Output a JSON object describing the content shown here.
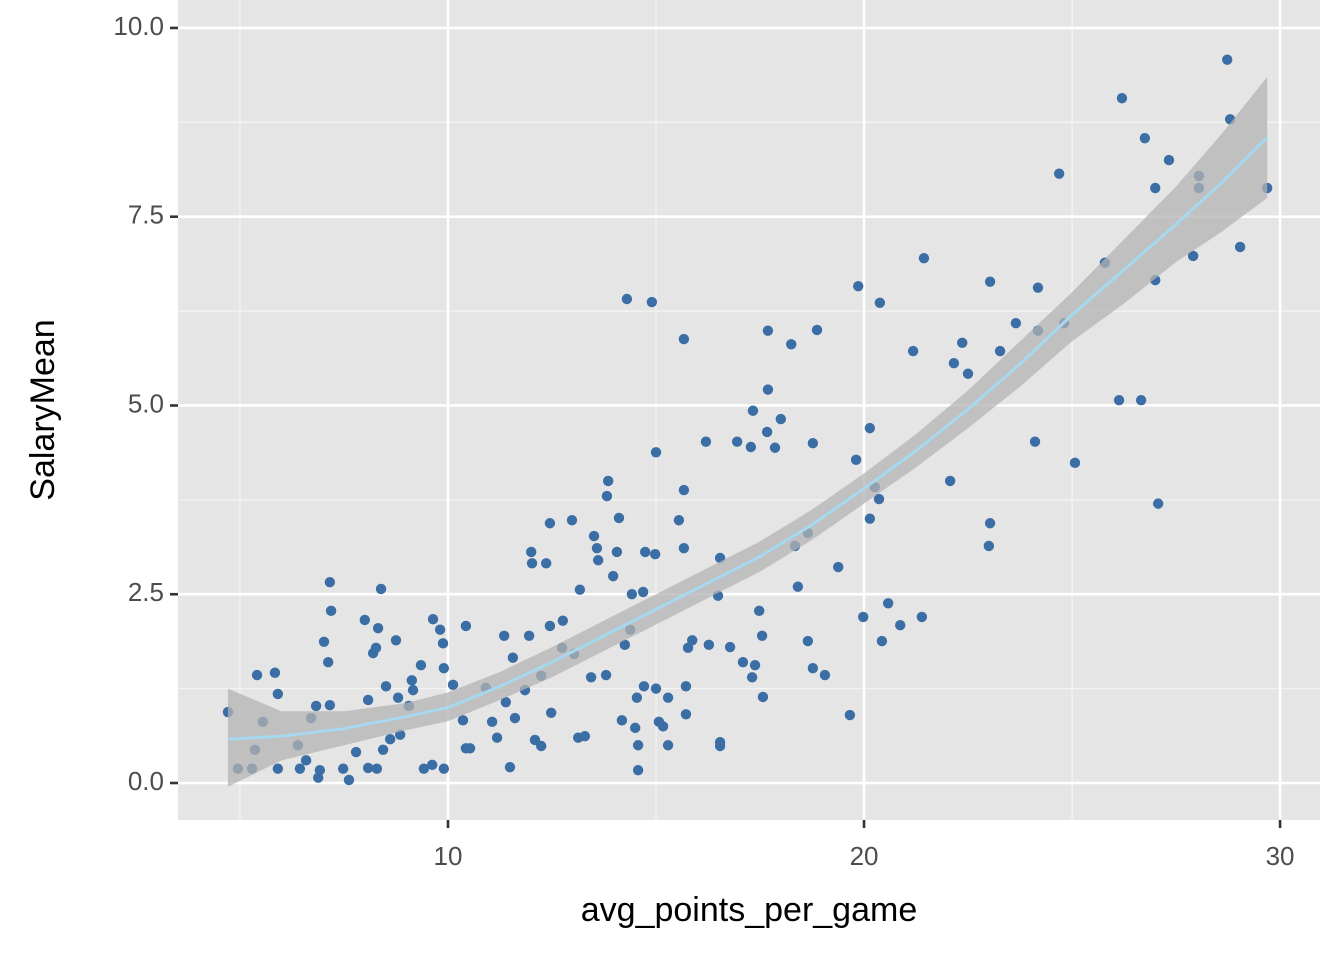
{
  "chart_data": {
    "type": "scatter",
    "xlabel": "avg_points_per_game",
    "ylabel": "SalaryMean",
    "xlim": [
      3.51,
      30.96
    ],
    "ylim": [
      -0.49,
      10.37
    ],
    "xticks": [
      10,
      20,
      30
    ],
    "yticks": [
      {
        "value": 0,
        "label": "0.0"
      },
      {
        "value": 2.5,
        "label": "2.5"
      },
      {
        "value": 5,
        "label": "5.0"
      },
      {
        "value": 7.5,
        "label": "7.5"
      },
      {
        "value": 10,
        "label": "10.0"
      }
    ],
    "xminor": [
      5,
      15,
      25
    ],
    "yminor": [
      1.25,
      3.75,
      6.25,
      8.75
    ],
    "grid": true,
    "series": [
      {
        "color": "#3a6ea5",
        "x": [
          4.71,
          4.95,
          5.29,
          5.41,
          5.55,
          5.36,
          5.84,
          5.91,
          5.91,
          6.39,
          6.44,
          6.59,
          6.71,
          6.83,
          6.88,
          6.92,
          7.02,
          7.12,
          7.16,
          7.19,
          7.16,
          7.48,
          7.62,
          7.79,
          8.0,
          8.08,
          8.08,
          8.2,
          8.27,
          8.32,
          8.39,
          8.51,
          8.29,
          8.44,
          8.61,
          8.75,
          8.8,
          8.85,
          9.06,
          9.13,
          9.16,
          9.35,
          9.42,
          9.64,
          9.62,
          9.81,
          9.88,
          9.9,
          9.9,
          10.12,
          10.43,
          10.36,
          10.43,
          10.53,
          10.91,
          11.06,
          11.18,
          11.35,
          11.39,
          11.49,
          11.56,
          11.61,
          11.85,
          11.95,
          12.0,
          12.02,
          12.09,
          12.24,
          12.24,
          12.36,
          12.45,
          12.48,
          12.45,
          12.74,
          12.76,
          12.98,
          13.03,
          13.13,
          13.17,
          13.29,
          13.44,
          13.51,
          13.58,
          13.61,
          13.8,
          13.82,
          13.85,
          13.97,
          14.06,
          14.11,
          14.18,
          14.25,
          14.3,
          14.38,
          14.42,
          14.5,
          14.54,
          14.57,
          14.57,
          14.69,
          14.71,
          14.74,
          14.9,
          14.98,
          15.0,
          15.0,
          15.07,
          15.17,
          15.29,
          15.29,
          15.55,
          15.67,
          15.67,
          15.67,
          15.72,
          15.72,
          15.77,
          15.87,
          16.2,
          16.27,
          16.54,
          16.49,
          16.54,
          16.54,
          16.78,
          16.95,
          17.09,
          17.28,
          17.33,
          17.31,
          17.38,
          17.48,
          17.55,
          17.57,
          17.67,
          17.69,
          17.69,
          17.86,
          18.0,
          18.25,
          18.34,
          18.41,
          18.65,
          18.65,
          18.77,
          18.77,
          18.87,
          19.06,
          19.38,
          19.66,
          19.81,
          19.86,
          19.98,
          20.14,
          20.14,
          20.26,
          20.36,
          20.38,
          20.43,
          20.58,
          20.87,
          21.18,
          21.39,
          21.44,
          22.07,
          22.16,
          22.36,
          22.5,
          23.03,
          23.03,
          23.0,
          23.27,
          23.65,
          24.11,
          24.18,
          24.18,
          24.69,
          24.81,
          25.07,
          25.79,
          26.13,
          26.2,
          26.66,
          26.75,
          27.0,
          27.0,
          27.07,
          27.33,
          27.91,
          28.05,
          28.05,
          28.73,
          28.8,
          29.04,
          29.69
        ],
        "values": [
          0.94,
          0.19,
          0.19,
          1.43,
          0.81,
          0.44,
          1.46,
          1.18,
          0.19,
          0.5,
          0.19,
          0.3,
          0.86,
          1.02,
          0.07,
          0.17,
          1.87,
          1.6,
          2.66,
          2.28,
          1.03,
          0.19,
          0.04,
          0.41,
          2.16,
          1.1,
          0.2,
          1.72,
          1.79,
          2.05,
          2.57,
          1.28,
          0.19,
          0.44,
          0.58,
          1.89,
          1.13,
          0.64,
          1.02,
          1.36,
          1.23,
          1.56,
          0.19,
          2.17,
          0.24,
          2.03,
          1.85,
          1.52,
          0.19,
          1.3,
          2.08,
          0.83,
          0.46,
          0.46,
          1.26,
          0.81,
          0.6,
          1.95,
          1.07,
          0.21,
          1.66,
          0.86,
          1.23,
          1.95,
          3.06,
          2.91,
          0.57,
          0.49,
          1.42,
          2.91,
          3.44,
          0.93,
          2.08,
          1.79,
          2.15,
          3.48,
          1.71,
          0.6,
          2.56,
          0.62,
          1.4,
          3.27,
          3.11,
          2.95,
          1.43,
          3.8,
          4.0,
          2.74,
          3.06,
          3.51,
          0.83,
          1.83,
          6.41,
          2.03,
          2.5,
          0.73,
          1.13,
          0.17,
          0.5,
          2.53,
          1.28,
          3.06,
          6.37,
          3.03,
          4.38,
          1.25,
          0.81,
          0.75,
          0.5,
          1.13,
          3.48,
          5.88,
          3.88,
          3.11,
          0.91,
          1.28,
          1.79,
          1.89,
          4.52,
          1.83,
          2.98,
          2.48,
          0.54,
          0.49,
          1.8,
          4.52,
          1.6,
          4.45,
          4.93,
          1.4,
          1.56,
          2.28,
          1.95,
          1.14,
          4.65,
          5.99,
          5.21,
          4.44,
          4.82,
          5.81,
          3.14,
          2.6,
          3.31,
          1.88,
          4.5,
          1.52,
          6.0,
          1.43,
          2.86,
          0.9,
          4.28,
          6.58,
          2.2,
          3.5,
          4.7,
          3.92,
          3.76,
          6.36,
          1.88,
          2.38,
          2.09,
          5.72,
          2.2,
          6.95,
          4.0,
          5.56,
          5.83,
          5.42,
          6.64,
          3.44,
          3.14,
          5.72,
          6.09,
          4.52,
          6.56,
          5.99,
          8.07,
          6.09,
          4.24,
          6.89,
          5.07,
          9.07,
          5.07,
          8.54,
          7.88,
          6.66,
          3.7,
          8.25,
          6.98,
          8.04,
          7.88,
          9.58,
          8.79,
          7.1,
          7.88
        ]
      }
    ],
    "smooth": {
      "color": "#a6d8ef",
      "band_color": "#b3b3b3",
      "x": [
        4.71,
        6,
        7.5,
        9,
        10,
        11.25,
        12.5,
        13.75,
        15,
        16.25,
        17.5,
        18.75,
        20,
        21.25,
        22.5,
        23.75,
        25,
        26.25,
        27.5,
        28.6,
        29.69
      ],
      "y": [
        0.58,
        0.62,
        0.72,
        0.88,
        1.0,
        1.28,
        1.6,
        1.95,
        2.3,
        2.65,
        3.0,
        3.42,
        3.9,
        4.4,
        4.95,
        5.55,
        6.2,
        6.8,
        7.4,
        7.95,
        8.55
      ],
      "lower": [
        -0.05,
        0.3,
        0.5,
        0.7,
        0.82,
        1.1,
        1.4,
        1.75,
        2.1,
        2.45,
        2.8,
        3.22,
        3.7,
        4.18,
        4.7,
        5.25,
        5.85,
        6.35,
        6.9,
        7.3,
        7.75
      ],
      "upper": [
        1.25,
        0.95,
        0.95,
        1.06,
        1.2,
        1.47,
        1.8,
        2.15,
        2.5,
        2.85,
        3.2,
        3.62,
        4.1,
        4.62,
        5.2,
        5.85,
        6.5,
        7.2,
        7.9,
        8.6,
        9.35
      ]
    }
  }
}
